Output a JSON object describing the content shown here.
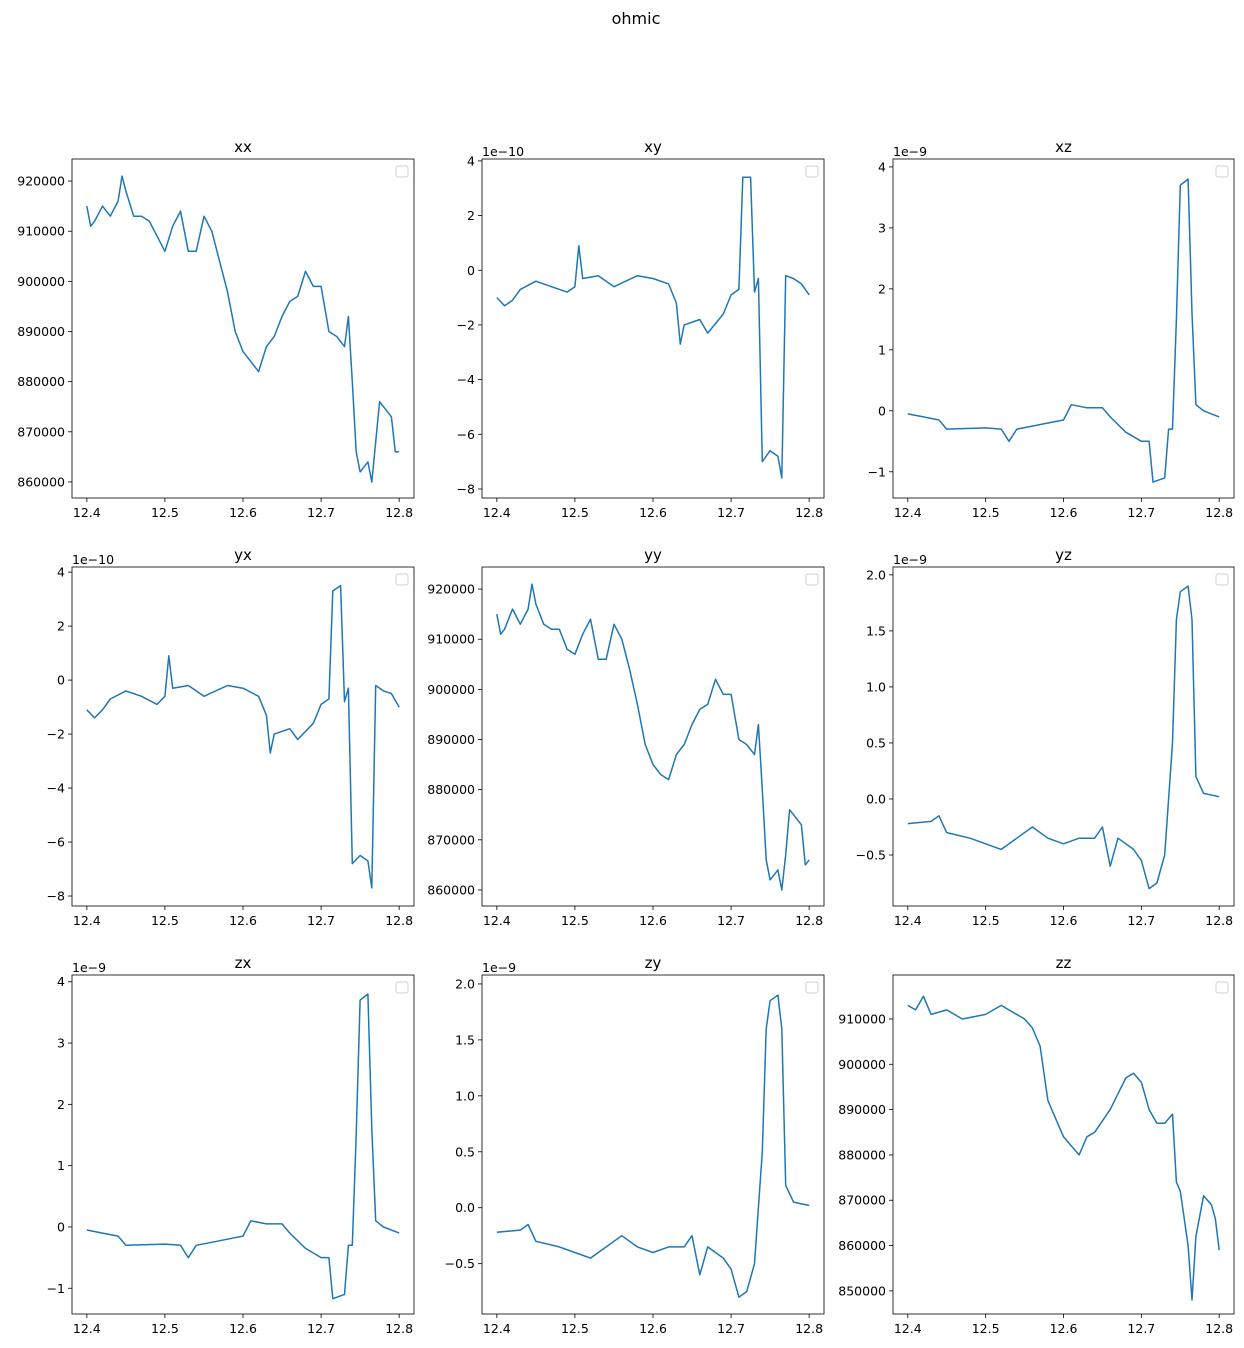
{
  "chart_data": {
    "type": "line",
    "title": "ohmic",
    "line_color": "#1f77b4",
    "legend": "top-right (empty)",
    "panels": [
      {
        "title": "xx",
        "offset": "",
        "xlim": [
          12.381,
          12.819
        ],
        "ylim": [
          856800,
          924400
        ],
        "xticks": [
          12.4,
          12.5,
          12.6,
          12.7,
          12.8
        ],
        "xticklabels": [
          "12.4",
          "12.5",
          "12.6",
          "12.7",
          "12.8"
        ],
        "yticks": [
          860000,
          870000,
          880000,
          890000,
          900000,
          910000,
          920000
        ],
        "yticklabels": [
          "860000",
          "870000",
          "880000",
          "890000",
          "900000",
          "910000",
          "920000"
        ],
        "x": [
          12.4,
          12.405,
          12.41,
          12.42,
          12.43,
          12.44,
          12.445,
          12.45,
          12.46,
          12.47,
          12.48,
          12.49,
          12.5,
          12.51,
          12.52,
          12.53,
          12.54,
          12.55,
          12.56,
          12.57,
          12.58,
          12.59,
          12.6,
          12.61,
          12.62,
          12.63,
          12.64,
          12.65,
          12.66,
          12.67,
          12.68,
          12.69,
          12.7,
          12.71,
          12.72,
          12.73,
          12.735,
          12.74,
          12.745,
          12.75,
          12.76,
          12.765,
          12.77,
          12.775,
          12.78,
          12.79,
          12.795,
          12.8
        ],
        "y": [
          915000,
          911000,
          912000,
          915000,
          913000,
          916000,
          921000,
          918000,
          913000,
          913000,
          912000,
          909000,
          906000,
          911000,
          914000,
          906000,
          906000,
          913000,
          910000,
          904000,
          898000,
          890000,
          886000,
          884000,
          882000,
          887000,
          889000,
          893000,
          896000,
          897000,
          902000,
          899000,
          899000,
          890000,
          889000,
          887000,
          893000,
          880000,
          866000,
          862000,
          864000,
          860000,
          868000,
          876000,
          875000,
          873000,
          866000,
          866000
        ]
      },
      {
        "title": "xy",
        "offset": "1e−10",
        "xlim": [
          12.381,
          12.819
        ],
        "ylim": [
          -8.33,
          4.07
        ],
        "xticks": [
          12.4,
          12.5,
          12.6,
          12.7,
          12.8
        ],
        "xticklabels": [
          "12.4",
          "12.5",
          "12.6",
          "12.7",
          "12.8"
        ],
        "yticks": [
          -8,
          -6,
          -4,
          -2,
          0,
          2,
          4
        ],
        "yticklabels": [
          "−8",
          "−6",
          "−4",
          "−2",
          "0",
          "2",
          "4"
        ],
        "x": [
          12.4,
          12.41,
          12.42,
          12.43,
          12.45,
          12.47,
          12.49,
          12.5,
          12.505,
          12.51,
          12.53,
          12.55,
          12.58,
          12.6,
          12.62,
          12.63,
          12.635,
          12.64,
          12.66,
          12.67,
          12.69,
          12.7,
          12.71,
          12.715,
          12.725,
          12.73,
          12.735,
          12.74,
          12.75,
          12.76,
          12.765,
          12.77,
          12.78,
          12.79,
          12.8
        ],
        "y": [
          -1.0,
          -1.3,
          -1.1,
          -0.7,
          -0.4,
          -0.6,
          -0.8,
          -0.6,
          0.9,
          -0.3,
          -0.2,
          -0.6,
          -0.2,
          -0.3,
          -0.5,
          -1.2,
          -2.7,
          -2.0,
          -1.8,
          -2.3,
          -1.6,
          -0.9,
          -0.7,
          3.4,
          3.4,
          -0.8,
          -0.3,
          -7.0,
          -6.6,
          -6.8,
          -7.6,
          -0.2,
          -0.3,
          -0.5,
          -0.9
        ]
      },
      {
        "title": "xz",
        "offset": "1e−9",
        "xlim": [
          12.381,
          12.819
        ],
        "ylim": [
          -1.43,
          4.13
        ],
        "xticks": [
          12.4,
          12.5,
          12.6,
          12.7,
          12.8
        ],
        "xticklabels": [
          "12.4",
          "12.5",
          "12.6",
          "12.7",
          "12.8"
        ],
        "yticks": [
          -1,
          0,
          1,
          2,
          3,
          4
        ],
        "yticklabels": [
          "−1",
          "0",
          "1",
          "2",
          "3",
          "4"
        ],
        "x": [
          12.4,
          12.42,
          12.44,
          12.45,
          12.5,
          12.52,
          12.53,
          12.54,
          12.56,
          12.58,
          12.6,
          12.61,
          12.63,
          12.65,
          12.66,
          12.68,
          12.7,
          12.71,
          12.715,
          12.73,
          12.735,
          12.74,
          12.745,
          12.75,
          12.76,
          12.765,
          12.77,
          12.78,
          12.8
        ],
        "y": [
          -0.05,
          -0.1,
          -0.15,
          -0.3,
          -0.28,
          -0.3,
          -0.5,
          -0.3,
          -0.25,
          -0.2,
          -0.15,
          0.1,
          0.05,
          0.05,
          -0.1,
          -0.35,
          -0.5,
          -0.5,
          -1.17,
          -1.1,
          -0.3,
          -0.3,
          1.5,
          3.7,
          3.8,
          1.6,
          0.1,
          0.0,
          -0.1
        ]
      },
      {
        "title": "yx",
        "offset": "1e−10",
        "xlim": [
          12.381,
          12.819
        ],
        "ylim": [
          -8.37,
          4.19
        ],
        "xticks": [
          12.4,
          12.5,
          12.6,
          12.7,
          12.8
        ],
        "xticklabels": [
          "12.4",
          "12.5",
          "12.6",
          "12.7",
          "12.8"
        ],
        "yticks": [
          -8,
          -6,
          -4,
          -2,
          0,
          2,
          4
        ],
        "yticklabels": [
          "−8",
          "−6",
          "−4",
          "−2",
          "0",
          "2",
          "4"
        ],
        "x": [
          12.4,
          12.41,
          12.42,
          12.43,
          12.45,
          12.47,
          12.49,
          12.5,
          12.505,
          12.51,
          12.53,
          12.55,
          12.58,
          12.6,
          12.62,
          12.63,
          12.635,
          12.64,
          12.66,
          12.67,
          12.69,
          12.7,
          12.71,
          12.715,
          12.725,
          12.73,
          12.735,
          12.74,
          12.75,
          12.76,
          12.765,
          12.77,
          12.78,
          12.79,
          12.8
        ],
        "y": [
          -1.1,
          -1.4,
          -1.1,
          -0.7,
          -0.4,
          -0.6,
          -0.9,
          -0.6,
          0.9,
          -0.3,
          -0.2,
          -0.6,
          -0.2,
          -0.3,
          -0.6,
          -1.3,
          -2.7,
          -2.0,
          -1.8,
          -2.2,
          -1.6,
          -0.9,
          -0.7,
          3.3,
          3.5,
          -0.8,
          -0.3,
          -6.8,
          -6.5,
          -6.7,
          -7.7,
          -0.2,
          -0.4,
          -0.5,
          -1.0
        ]
      },
      {
        "title": "yy",
        "offset": "",
        "xlim": [
          12.381,
          12.819
        ],
        "ylim": [
          856800,
          924400
        ],
        "xticks": [
          12.4,
          12.5,
          12.6,
          12.7,
          12.8
        ],
        "xticklabels": [
          "12.4",
          "12.5",
          "12.6",
          "12.7",
          "12.8"
        ],
        "yticks": [
          860000,
          870000,
          880000,
          890000,
          900000,
          910000,
          920000
        ],
        "yticklabels": [
          "860000",
          "870000",
          "880000",
          "890000",
          "900000",
          "910000",
          "920000"
        ],
        "x": [
          12.4,
          12.405,
          12.41,
          12.42,
          12.43,
          12.44,
          12.445,
          12.45,
          12.46,
          12.47,
          12.48,
          12.49,
          12.5,
          12.51,
          12.52,
          12.53,
          12.54,
          12.55,
          12.56,
          12.57,
          12.58,
          12.59,
          12.6,
          12.61,
          12.62,
          12.63,
          12.64,
          12.65,
          12.66,
          12.67,
          12.68,
          12.69,
          12.7,
          12.71,
          12.72,
          12.73,
          12.735,
          12.74,
          12.745,
          12.75,
          12.76,
          12.765,
          12.77,
          12.775,
          12.78,
          12.79,
          12.795,
          12.8
        ],
        "y": [
          915000,
          911000,
          912000,
          916000,
          913000,
          916000,
          921000,
          917000,
          913000,
          912000,
          912000,
          908000,
          907000,
          911000,
          914000,
          906000,
          906000,
          913000,
          910000,
          904000,
          897000,
          889000,
          885000,
          883000,
          882000,
          887000,
          889000,
          893000,
          896000,
          897000,
          902000,
          899000,
          899000,
          890000,
          889000,
          887000,
          893000,
          880000,
          866000,
          862000,
          864000,
          860000,
          867000,
          876000,
          875000,
          873000,
          865000,
          866000
        ]
      },
      {
        "title": "yz",
        "offset": "1e−9",
        "xlim": [
          12.381,
          12.819
        ],
        "ylim": [
          -0.955,
          2.07
        ],
        "xticks": [
          12.4,
          12.5,
          12.6,
          12.7,
          12.8
        ],
        "xticklabels": [
          "12.4",
          "12.5",
          "12.6",
          "12.7",
          "12.8"
        ],
        "yticks": [
          -0.5,
          0,
          0.5,
          1,
          1.5,
          2
        ],
        "yticklabels": [
          "−0.5",
          "0.0",
          "0.5",
          "1.0",
          "1.5",
          "2.0"
        ],
        "x": [
          12.4,
          12.43,
          12.44,
          12.45,
          12.48,
          12.5,
          12.52,
          12.54,
          12.56,
          12.58,
          12.6,
          12.62,
          12.64,
          12.65,
          12.66,
          12.67,
          12.69,
          12.7,
          12.71,
          12.72,
          12.73,
          12.74,
          12.745,
          12.75,
          12.76,
          12.765,
          12.77,
          12.78,
          12.8
        ],
        "y": [
          -0.22,
          -0.2,
          -0.15,
          -0.3,
          -0.35,
          -0.4,
          -0.45,
          -0.35,
          -0.25,
          -0.35,
          -0.4,
          -0.35,
          -0.35,
          -0.25,
          -0.6,
          -0.35,
          -0.45,
          -0.55,
          -0.8,
          -0.75,
          -0.5,
          0.5,
          1.6,
          1.85,
          1.9,
          1.6,
          0.2,
          0.05,
          0.02
        ]
      },
      {
        "title": "zx",
        "offset": "1e−9",
        "xlim": [
          12.381,
          12.819
        ],
        "ylim": [
          -1.42,
          4.11
        ],
        "xticks": [
          12.4,
          12.5,
          12.6,
          12.7,
          12.8
        ],
        "xticklabels": [
          "12.4",
          "12.5",
          "12.6",
          "12.7",
          "12.8"
        ],
        "yticks": [
          -1,
          0,
          1,
          2,
          3,
          4
        ],
        "yticklabels": [
          "−1",
          "0",
          "1",
          "2",
          "3",
          "4"
        ],
        "x": [
          12.4,
          12.42,
          12.44,
          12.45,
          12.5,
          12.52,
          12.53,
          12.54,
          12.56,
          12.58,
          12.6,
          12.61,
          12.63,
          12.65,
          12.66,
          12.68,
          12.7,
          12.71,
          12.715,
          12.73,
          12.735,
          12.74,
          12.745,
          12.75,
          12.76,
          12.765,
          12.77,
          12.78,
          12.8
        ],
        "y": [
          -0.05,
          -0.1,
          -0.15,
          -0.3,
          -0.28,
          -0.3,
          -0.5,
          -0.3,
          -0.25,
          -0.2,
          -0.15,
          0.1,
          0.05,
          0.05,
          -0.1,
          -0.35,
          -0.5,
          -0.5,
          -1.17,
          -1.1,
          -0.3,
          -0.3,
          1.5,
          3.7,
          3.8,
          1.6,
          0.1,
          0.0,
          -0.1
        ]
      },
      {
        "title": "zy",
        "offset": "1e−9",
        "xlim": [
          12.381,
          12.819
        ],
        "ylim": [
          -0.95,
          2.08
        ],
        "xticks": [
          12.4,
          12.5,
          12.6,
          12.7,
          12.8
        ],
        "xticklabels": [
          "12.4",
          "12.5",
          "12.6",
          "12.7",
          "12.8"
        ],
        "yticks": [
          -0.5,
          0,
          0.5,
          1,
          1.5,
          2
        ],
        "yticklabels": [
          "−0.5",
          "0.0",
          "0.5",
          "1.0",
          "1.5",
          "2.0"
        ],
        "x": [
          12.4,
          12.43,
          12.44,
          12.45,
          12.48,
          12.5,
          12.52,
          12.54,
          12.56,
          12.58,
          12.6,
          12.62,
          12.64,
          12.65,
          12.66,
          12.67,
          12.69,
          12.7,
          12.71,
          12.72,
          12.73,
          12.74,
          12.745,
          12.75,
          12.76,
          12.765,
          12.77,
          12.78,
          12.8
        ],
        "y": [
          -0.22,
          -0.2,
          -0.15,
          -0.3,
          -0.35,
          -0.4,
          -0.45,
          -0.35,
          -0.25,
          -0.35,
          -0.4,
          -0.35,
          -0.35,
          -0.25,
          -0.6,
          -0.35,
          -0.45,
          -0.55,
          -0.8,
          -0.75,
          -0.5,
          0.5,
          1.6,
          1.85,
          1.9,
          1.6,
          0.2,
          0.05,
          0.02
        ]
      },
      {
        "title": "zz",
        "offset": "",
        "xlim": [
          12.381,
          12.819
        ],
        "ylim": [
          844900,
          919700
        ],
        "xticks": [
          12.4,
          12.5,
          12.6,
          12.7,
          12.8
        ],
        "xticklabels": [
          "12.4",
          "12.5",
          "12.6",
          "12.7",
          "12.8"
        ],
        "yticks": [
          850000,
          860000,
          870000,
          880000,
          890000,
          900000,
          910000
        ],
        "yticklabels": [
          "850000",
          "860000",
          "870000",
          "880000",
          "890000",
          "900000",
          "910000"
        ],
        "x": [
          12.4,
          12.41,
          12.42,
          12.43,
          12.45,
          12.47,
          12.5,
          12.52,
          12.55,
          12.56,
          12.57,
          12.58,
          12.59,
          12.6,
          12.62,
          12.63,
          12.64,
          12.66,
          12.68,
          12.69,
          12.7,
          12.71,
          12.72,
          12.73,
          12.74,
          12.745,
          12.75,
          12.76,
          12.765,
          12.77,
          12.78,
          12.79,
          12.795,
          12.8
        ],
        "y": [
          913000,
          912000,
          915000,
          911000,
          912000,
          910000,
          911000,
          913000,
          910000,
          908000,
          904000,
          892000,
          888000,
          884000,
          880000,
          884000,
          885000,
          890000,
          897000,
          898000,
          896000,
          890000,
          887000,
          887000,
          889000,
          874000,
          872000,
          860000,
          848000,
          862000,
          871000,
          869000,
          866000,
          859000
        ]
      }
    ]
  }
}
